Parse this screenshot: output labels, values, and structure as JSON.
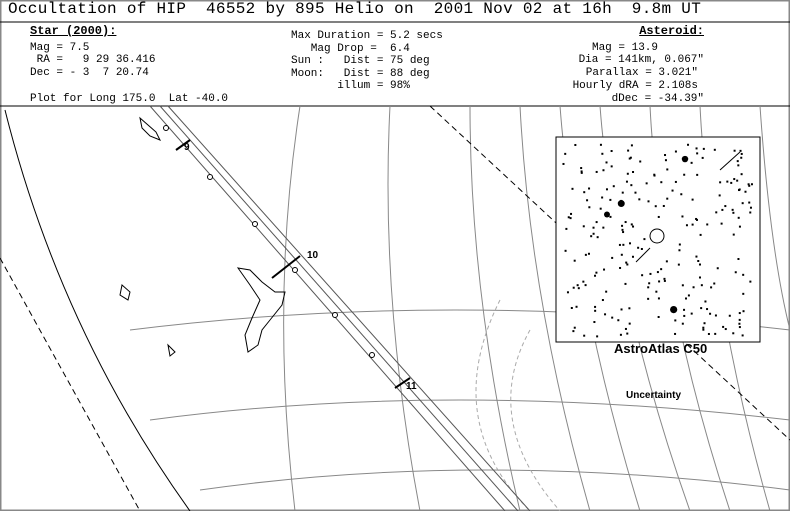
{
  "header": {
    "title": "Occultation of HIP  46552 by 895 Helio on  2001 Nov 02 at 16h  9.8m UT"
  },
  "star": {
    "heading": "Star (2000):",
    "lines": [
      "Mag = 7.5",
      " RA =   9 29 36.416",
      "Dec = - 3  7 20.74"
    ]
  },
  "event": {
    "lines": [
      "Max Duration = 5.2 secs",
      "   Mag Drop =  6.4",
      "Sun :   Dist = 75 deg",
      "Moon:   Dist = 88 deg",
      "       illum = 98%"
    ]
  },
  "asteroid": {
    "heading": "Asteroid:",
    "lines": [
      "Mag = 13.9",
      "Dia = 141km, 0.067\"",
      "Parallax = 3.021\"",
      "Hourly dRA = 2.108s",
      "dDec = -34.39\""
    ]
  },
  "plot_caption": "Plot for Long 175.0  Lat -40.0",
  "map": {
    "time_labels": [
      "9",
      "10",
      "11"
    ],
    "inset_caption": "AstroAtlas C50",
    "uncertainty_label": "Uncertainty"
  }
}
